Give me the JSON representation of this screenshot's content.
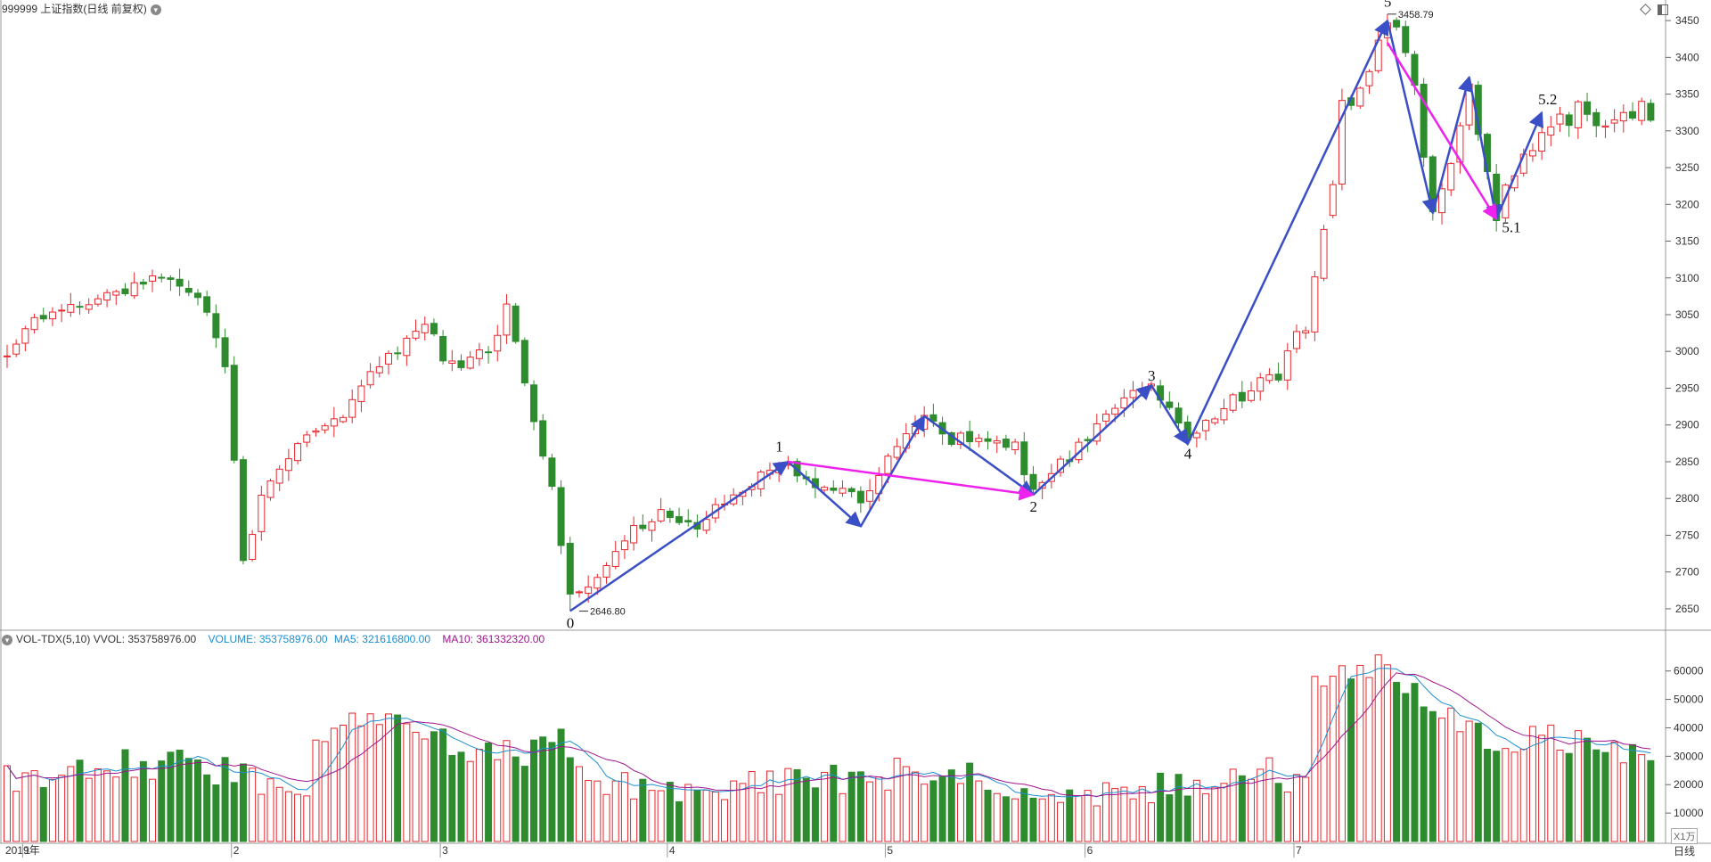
{
  "window": {
    "title": "999999 上证指数(日线 前复权)",
    "freq_label": "日线",
    "volume_unit": "X1万"
  },
  "indicator": {
    "name": "VOL-TDX(5,10)",
    "vvol": "VVOL: 353758976.00",
    "volume": "VOLUME: 353758976.00",
    "ma5": "MA5: 321616800.00",
    "ma10": "MA10: 361332320.00"
  },
  "colors": {
    "up": "#e8262c",
    "down": "#2e8b2e",
    "wave_arrow": "#3a4fc6",
    "corrective_arrow": "#ee22ee",
    "ma5": "#1b8fd0",
    "ma10": "#a0148e",
    "grid": "#cccccc"
  },
  "chart_data": [
    {
      "type": "candlestick",
      "price_axis": {
        "ylim": [
          2622,
          3478
        ],
        "ticks": [
          2650,
          2700,
          2750,
          2800,
          2850,
          2900,
          2950,
          3000,
          3050,
          3100,
          3150,
          3200,
          3250,
          3300,
          3350,
          3400,
          3450
        ]
      },
      "x_axis": {
        "bars": 182,
        "month_labels": [
          {
            "bar": 0,
            "label": "2019年"
          },
          {
            "bar": 2,
            "label": "1"
          },
          {
            "bar": 25,
            "label": "2"
          },
          {
            "bar": 48,
            "label": "3"
          },
          {
            "bar": 73,
            "label": "4"
          },
          {
            "bar": 97,
            "label": "5"
          },
          {
            "bar": 119,
            "label": "6"
          },
          {
            "bar": 142,
            "label": "7"
          }
        ]
      },
      "annotations": [
        {
          "text": "2646.80",
          "bar": 63,
          "price": 2646.8
        },
        {
          "text": "3458.79",
          "bar": 152,
          "price": 3458.79
        }
      ],
      "wave_labels": [
        {
          "text": "0",
          "bar": 62,
          "price": 2624
        },
        {
          "text": "1",
          "bar": 85,
          "price": 2864
        },
        {
          "text": "2",
          "bar": 113,
          "price": 2782
        },
        {
          "text": "3",
          "bar": 126,
          "price": 2960
        },
        {
          "text": "4",
          "bar": 130,
          "price": 2854
        },
        {
          "text": "5",
          "bar": 152,
          "price": 3469
        },
        {
          "text": "5.1",
          "bar": 165,
          "price": 3162
        },
        {
          "text": "5.2",
          "bar": 169,
          "price": 3336
        }
      ],
      "wave_lines": [
        {
          "style": "impulse",
          "points": [
            [
              62,
              2647
            ],
            [
              86,
              2850
            ],
            [
              94,
              2762
            ],
            [
              101,
              2912
            ],
            [
              113,
              2805
            ],
            [
              126,
              2954
            ],
            [
              130,
              2874
            ],
            [
              152,
              3450
            ],
            [
              157,
              3188
            ],
            [
              161,
              3373
            ],
            [
              164,
              3180
            ],
            [
              169,
              3325
            ]
          ]
        },
        {
          "style": "corrective",
          "points": [
            [
              86,
              2850
            ],
            [
              113,
              2805
            ]
          ]
        },
        {
          "style": "corrective",
          "points": [
            [
              152,
              3420
            ],
            [
              164,
              3180
            ]
          ]
        }
      ]
    },
    {
      "type": "bar",
      "title": "VOL-TDX(5,10)",
      "y_axis": {
        "ylim": [
          0,
          69000
        ],
        "ticks": [
          10000,
          20000,
          30000,
          40000,
          50000,
          60000
        ]
      },
      "series": [
        {
          "name": "VOLUME"
        },
        {
          "name": "MA5"
        },
        {
          "name": "MA10"
        }
      ]
    }
  ]
}
